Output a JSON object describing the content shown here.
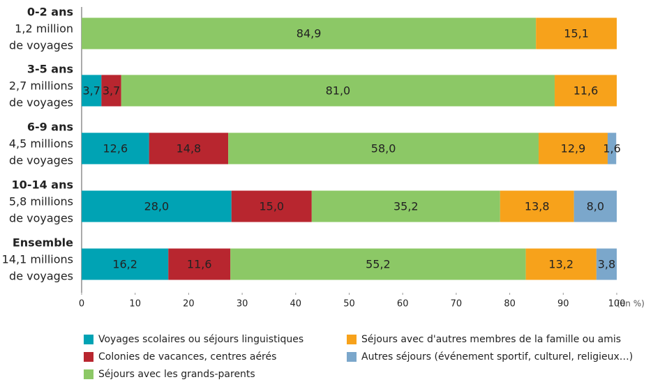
{
  "chart_data": {
    "type": "stacked-barh",
    "categories": [
      "0-2 ans",
      "3-5 ans",
      "6-9 ans",
      "10-14 ans",
      "Ensemble"
    ],
    "category_notes": [
      [
        "1,2 million",
        "de voyages"
      ],
      [
        "2,7 millions",
        "de voyages"
      ],
      [
        "4,5 millions",
        "de voyages"
      ],
      [
        "5,8 millions",
        "de voyages"
      ],
      [
        "14,1 millions",
        "de voyages"
      ]
    ],
    "series": [
      {
        "name": "Voyages scolaires ou séjours linguistiques",
        "color": "#00a3b4",
        "values": [
          0,
          3.7,
          12.6,
          28.0,
          16.2
        ],
        "value_labels": [
          null,
          "3,7",
          "12,6",
          "28,0",
          "16,2"
        ]
      },
      {
        "name": "Colonies de vacances, centres aérés",
        "color": "#b8262f",
        "values": [
          0,
          3.7,
          14.8,
          15.0,
          11.6
        ],
        "value_labels": [
          null,
          "3,7",
          "14,8",
          "15,0",
          "11,6"
        ]
      },
      {
        "name": "Séjours avec les grands-parents",
        "color": "#8cc866",
        "values": [
          84.9,
          81.0,
          58.0,
          35.2,
          55.2
        ],
        "value_labels": [
          "84,9",
          "81,0",
          "58,0",
          "35,2",
          "55,2"
        ]
      },
      {
        "name": "Séjours avec d'autres membres de la famille ou amis",
        "color": "#f7a21b",
        "values": [
          15.1,
          11.6,
          12.9,
          13.8,
          13.2
        ],
        "value_labels": [
          "15,1",
          "11,6",
          "12,9",
          "13,8",
          "13,2"
        ]
      },
      {
        "name": "Autres séjours (événement sportif, culturel, religieux…)",
        "color": "#7ba7cb",
        "values": [
          0,
          0,
          1.6,
          8.0,
          3.8
        ],
        "value_labels": [
          null,
          null,
          "1,6",
          "8,0",
          "3,8"
        ]
      }
    ],
    "xlim": [
      0,
      100
    ],
    "xticks": [
      0,
      10,
      20,
      30,
      40,
      50,
      60,
      70,
      80,
      90,
      100
    ],
    "x_unit": "(en %)"
  }
}
